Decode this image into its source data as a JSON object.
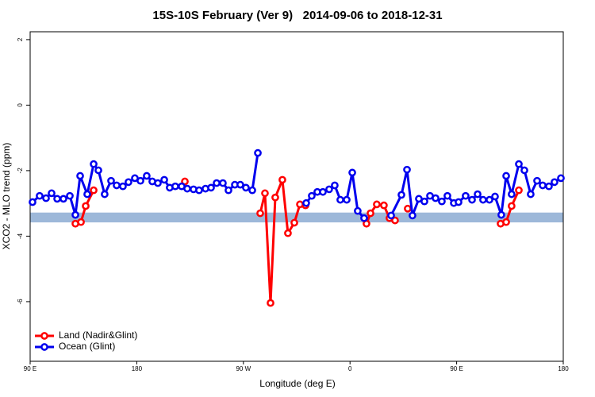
{
  "chart_data": {
    "type": "line",
    "title": "15S-10S February (Ver 9)   2014-09-06 to 2018-12-31",
    "x_label": "Longitude (deg E)",
    "y_label": "XCO2 - MLO trend (ppm)",
    "xlim": [
      90,
      540
    ],
    "ylim": [
      -7.82,
      2.24
    ],
    "xticks": [
      {
        "value": 90,
        "label": "90 E"
      },
      {
        "value": 180,
        "label": "180"
      },
      {
        "value": 270,
        "label": "90 W"
      },
      {
        "value": 360,
        "label": "0"
      },
      {
        "value": 450,
        "label": "90 E"
      },
      {
        "value": 540,
        "label": "180"
      }
    ],
    "yticks": [
      2,
      0,
      -2,
      -4,
      -6
    ],
    "band": {
      "ylim": [
        -3.58,
        -3.28
      ],
      "color": "#9db8d9"
    },
    "legend": "bottom-left",
    "series": [
      {
        "name": "Land (Nadir&Glint)",
        "color": "#ff0000",
        "x": [
          128.2,
          132.9,
          136.9,
          143.6,
          null,
          220.6,
          null,
          284.2,
          288.2,
          292.9,
          296.9,
          302.9,
          307.6,
          313.0,
          317.7,
          322.4,
          null,
          373.9,
          377.3,
          382.6,
          388.6,
          393.3,
          398.0,
          null,
          408.7,
          null,
          487.1,
          491.8,
          496.4,
          502.5
        ],
        "values": [
          -3.62,
          -3.57,
          -3.08,
          -2.6,
          null,
          -2.33,
          null,
          -3.3,
          -2.69,
          -6.04,
          -2.82,
          -2.28,
          -3.91,
          -3.59,
          -3.03,
          -3.06,
          null,
          -3.62,
          -3.3,
          -3.03,
          -3.06,
          -3.45,
          -3.52,
          null,
          -3.16,
          null,
          -3.62,
          -3.57,
          -3.08,
          -2.6
        ]
      },
      {
        "name": "Ocean (Glint)",
        "color": "#0000ee",
        "x": [
          92.0,
          98.0,
          103.4,
          108.1,
          112.8,
          118.1,
          123.5,
          128.2,
          132.2,
          138.2,
          143.6,
          147.6,
          152.9,
          158.3,
          163.0,
          168.3,
          173.0,
          178.4,
          183.1,
          188.4,
          193.1,
          197.8,
          203.2,
          207.8,
          212.5,
          217.9,
          222.6,
          227.9,
          232.6,
          238.0,
          242.7,
          247.4,
          252.7,
          257.4,
          262.8,
          267.4,
          272.1,
          277.5,
          282.2,
          null,
          323.0,
          327.7,
          332.4,
          337.1,
          342.4,
          347.1,
          351.8,
          357.2,
          361.9,
          366.5,
          371.9,
          null,
          394.7,
          403.4,
          408.1,
          412.7,
          418.1,
          422.8,
          427.5,
          432.2,
          437.5,
          442.2,
          447.6,
          451.6,
          457.6,
          463.0,
          467.7,
          472.3,
          477.7,
          482.4,
          487.7,
          491.8,
          496.4,
          502.5,
          507.2,
          512.5,
          517.9,
          522.6,
          527.9,
          532.6,
          538.0
        ],
        "values": [
          -2.96,
          -2.77,
          -2.84,
          -2.69,
          -2.86,
          -2.86,
          -2.77,
          -3.35,
          -2.16,
          -2.72,
          -1.8,
          -1.99,
          -2.72,
          -2.31,
          -2.45,
          -2.48,
          -2.35,
          -2.23,
          -2.31,
          -2.16,
          -2.33,
          -2.38,
          -2.28,
          -2.52,
          -2.48,
          -2.48,
          -2.55,
          -2.57,
          -2.6,
          -2.55,
          -2.52,
          -2.38,
          -2.38,
          -2.6,
          -2.43,
          -2.43,
          -2.52,
          -2.6,
          -1.46,
          null,
          -2.99,
          -2.77,
          -2.65,
          -2.65,
          -2.57,
          -2.45,
          -2.89,
          -2.89,
          -2.06,
          -3.23,
          -3.45,
          null,
          -3.37,
          -2.74,
          -1.97,
          -3.37,
          -2.86,
          -2.94,
          -2.77,
          -2.84,
          -2.94,
          -2.77,
          -2.99,
          -2.96,
          -2.77,
          -2.89,
          -2.72,
          -2.89,
          -2.89,
          -2.79,
          -3.35,
          -2.16,
          -2.72,
          -1.8,
          -1.99,
          -2.72,
          -2.31,
          -2.45,
          -2.48,
          -2.35,
          -2.23
        ]
      }
    ]
  }
}
